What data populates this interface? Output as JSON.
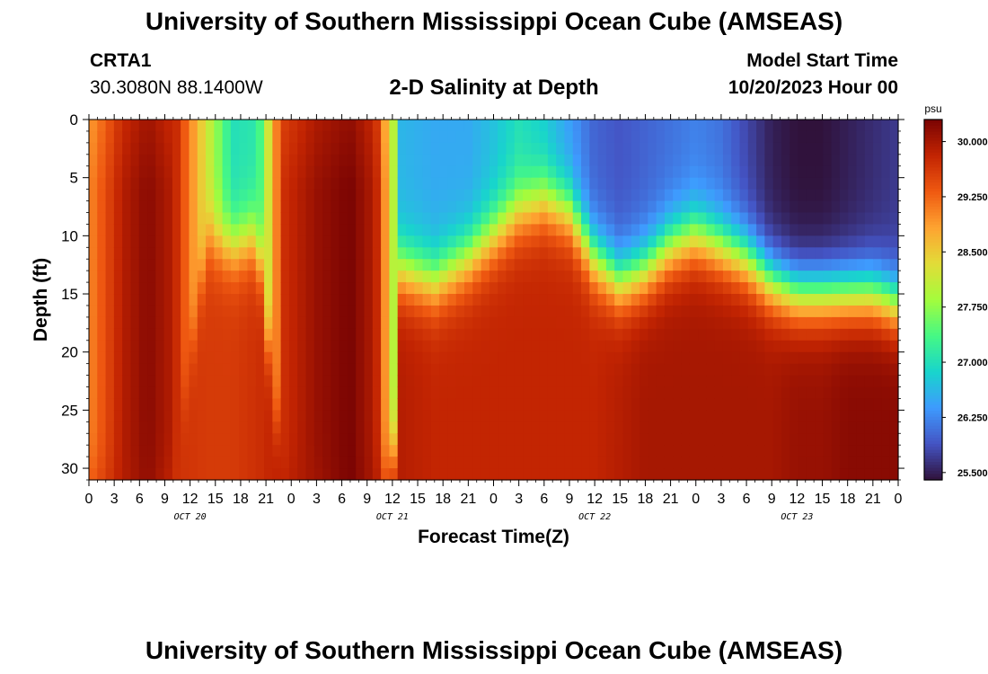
{
  "header": {
    "title": "University of Southern Mississippi Ocean Cube (AMSEAS)",
    "station": "CRTA1",
    "coordinates": "30.3080N  88.1400W",
    "plot_title": "2-D Salinity at Depth",
    "model_start_label": "Model Start Time",
    "model_start_value": "10/20/2023 Hour 00"
  },
  "footer": {
    "title": "University of Southern Mississippi Ocean Cube (AMSEAS)"
  },
  "chart_data": {
    "type": "heatmap",
    "title": "2-D Salinity at Depth",
    "xlabel": "Forecast Time(Z)",
    "ylabel": "Depth (ft)",
    "x_range_hours": [
      0,
      96
    ],
    "y_range_ft": [
      0,
      31
    ],
    "y_reversed": true,
    "x_tick_labels": [
      "0",
      "3",
      "6",
      "9",
      "12",
      "15",
      "18",
      "21",
      "0",
      "3",
      "6",
      "9",
      "12",
      "15",
      "18",
      "21",
      "0",
      "3",
      "6",
      "9",
      "12",
      "15",
      "18",
      "21",
      "0",
      "3",
      "6",
      "9",
      "12",
      "15",
      "18",
      "21",
      "0"
    ],
    "day_labels": [
      "OCT 20",
      "OCT 21",
      "OCT 22",
      "OCT 23"
    ],
    "y_ticks": [
      0,
      5,
      10,
      15,
      20,
      25,
      30
    ],
    "colorbar": {
      "units": "psu",
      "range": [
        25.4,
        30.3
      ],
      "ticks": [
        "30.000",
        "29.250",
        "28.500",
        "27.750",
        "27.000",
        "26.250",
        "25.500"
      ],
      "colors": [
        "#30123b",
        "#4454c4",
        "#3e9bfe",
        "#18d5cc",
        "#46f884",
        "#a4fc3c",
        "#e2dc38",
        "#fea331",
        "#ef5911",
        "#c22402",
        "#7a0403"
      ]
    },
    "grid": false,
    "columns_hourly": [
      {
        "t": 0,
        "thermocline_ft": 31,
        "surface_psu": 29.0,
        "deep_psu": 29.5
      },
      {
        "t": 4,
        "thermocline_ft": 31,
        "surface_psu": 29.9,
        "deep_psu": 29.9
      },
      {
        "t": 7,
        "thermocline_ft": 31,
        "surface_psu": 30.2,
        "deep_psu": 30.1
      },
      {
        "t": 10,
        "thermocline_ft": 31,
        "surface_psu": 29.9,
        "deep_psu": 29.7
      },
      {
        "t": 14,
        "thermocline_ft": 10,
        "surface_psu": 28.2,
        "deep_psu": 29.6
      },
      {
        "t": 17,
        "thermocline_ft": 11,
        "surface_psu": 27.0,
        "deep_psu": 29.6
      },
      {
        "t": 20,
        "thermocline_ft": 10,
        "surface_psu": 27.1,
        "deep_psu": 29.7
      },
      {
        "t": 23,
        "thermocline_ft": 31,
        "surface_psu": 29.7,
        "deep_psu": 29.9
      },
      {
        "t": 27,
        "thermocline_ft": 31,
        "surface_psu": 30.1,
        "deep_psu": 30.0
      },
      {
        "t": 31,
        "thermocline_ft": 31,
        "surface_psu": 30.3,
        "deep_psu": 30.3
      },
      {
        "t": 34,
        "thermocline_ft": 31,
        "surface_psu": 29.9,
        "deep_psu": 30.0
      },
      {
        "t": 36,
        "thermocline_ft": 31,
        "surface_psu": 28.2,
        "deep_psu": 29.9
      },
      {
        "t": 37,
        "thermocline_ft": 13,
        "surface_psu": 26.6,
        "deep_psu": 29.9
      },
      {
        "t": 41,
        "thermocline_ft": 14,
        "surface_psu": 26.5,
        "deep_psu": 29.8
      },
      {
        "t": 45,
        "thermocline_ft": 12,
        "surface_psu": 26.5,
        "deep_psu": 29.8
      },
      {
        "t": 48,
        "thermocline_ft": 10,
        "surface_psu": 26.7,
        "deep_psu": 29.8
      },
      {
        "t": 51,
        "thermocline_ft": 8,
        "surface_psu": 27.0,
        "deep_psu": 29.8
      },
      {
        "t": 54,
        "thermocline_ft": 7,
        "surface_psu": 26.8,
        "deep_psu": 29.8
      },
      {
        "t": 57,
        "thermocline_ft": 8,
        "surface_psu": 26.4,
        "deep_psu": 29.8
      },
      {
        "t": 60,
        "thermocline_ft": 12,
        "surface_psu": 26.0,
        "deep_psu": 29.8
      },
      {
        "t": 63,
        "thermocline_ft": 14,
        "surface_psu": 25.9,
        "deep_psu": 29.9
      },
      {
        "t": 66,
        "thermocline_ft": 13,
        "surface_psu": 26.0,
        "deep_psu": 30.0
      },
      {
        "t": 69,
        "thermocline_ft": 11,
        "surface_psu": 26.1,
        "deep_psu": 30.0
      },
      {
        "t": 72,
        "thermocline_ft": 10,
        "surface_psu": 26.2,
        "deep_psu": 30.0
      },
      {
        "t": 75,
        "thermocline_ft": 11,
        "surface_psu": 26.1,
        "deep_psu": 30.0
      },
      {
        "t": 78,
        "thermocline_ft": 12,
        "surface_psu": 25.8,
        "deep_psu": 30.0
      },
      {
        "t": 81,
        "thermocline_ft": 14,
        "surface_psu": 25.5,
        "deep_psu": 30.0
      },
      {
        "t": 84,
        "thermocline_ft": 15,
        "surface_psu": 25.4,
        "deep_psu": 30.1
      },
      {
        "t": 87,
        "thermocline_ft": 15,
        "surface_psu": 25.4,
        "deep_psu": 30.1
      },
      {
        "t": 90,
        "thermocline_ft": 15,
        "surface_psu": 25.5,
        "deep_psu": 30.2
      },
      {
        "t": 93,
        "thermocline_ft": 15,
        "surface_psu": 25.6,
        "deep_psu": 30.2
      },
      {
        "t": 96,
        "thermocline_ft": 16,
        "surface_psu": 25.7,
        "deep_psu": 30.2
      }
    ]
  }
}
